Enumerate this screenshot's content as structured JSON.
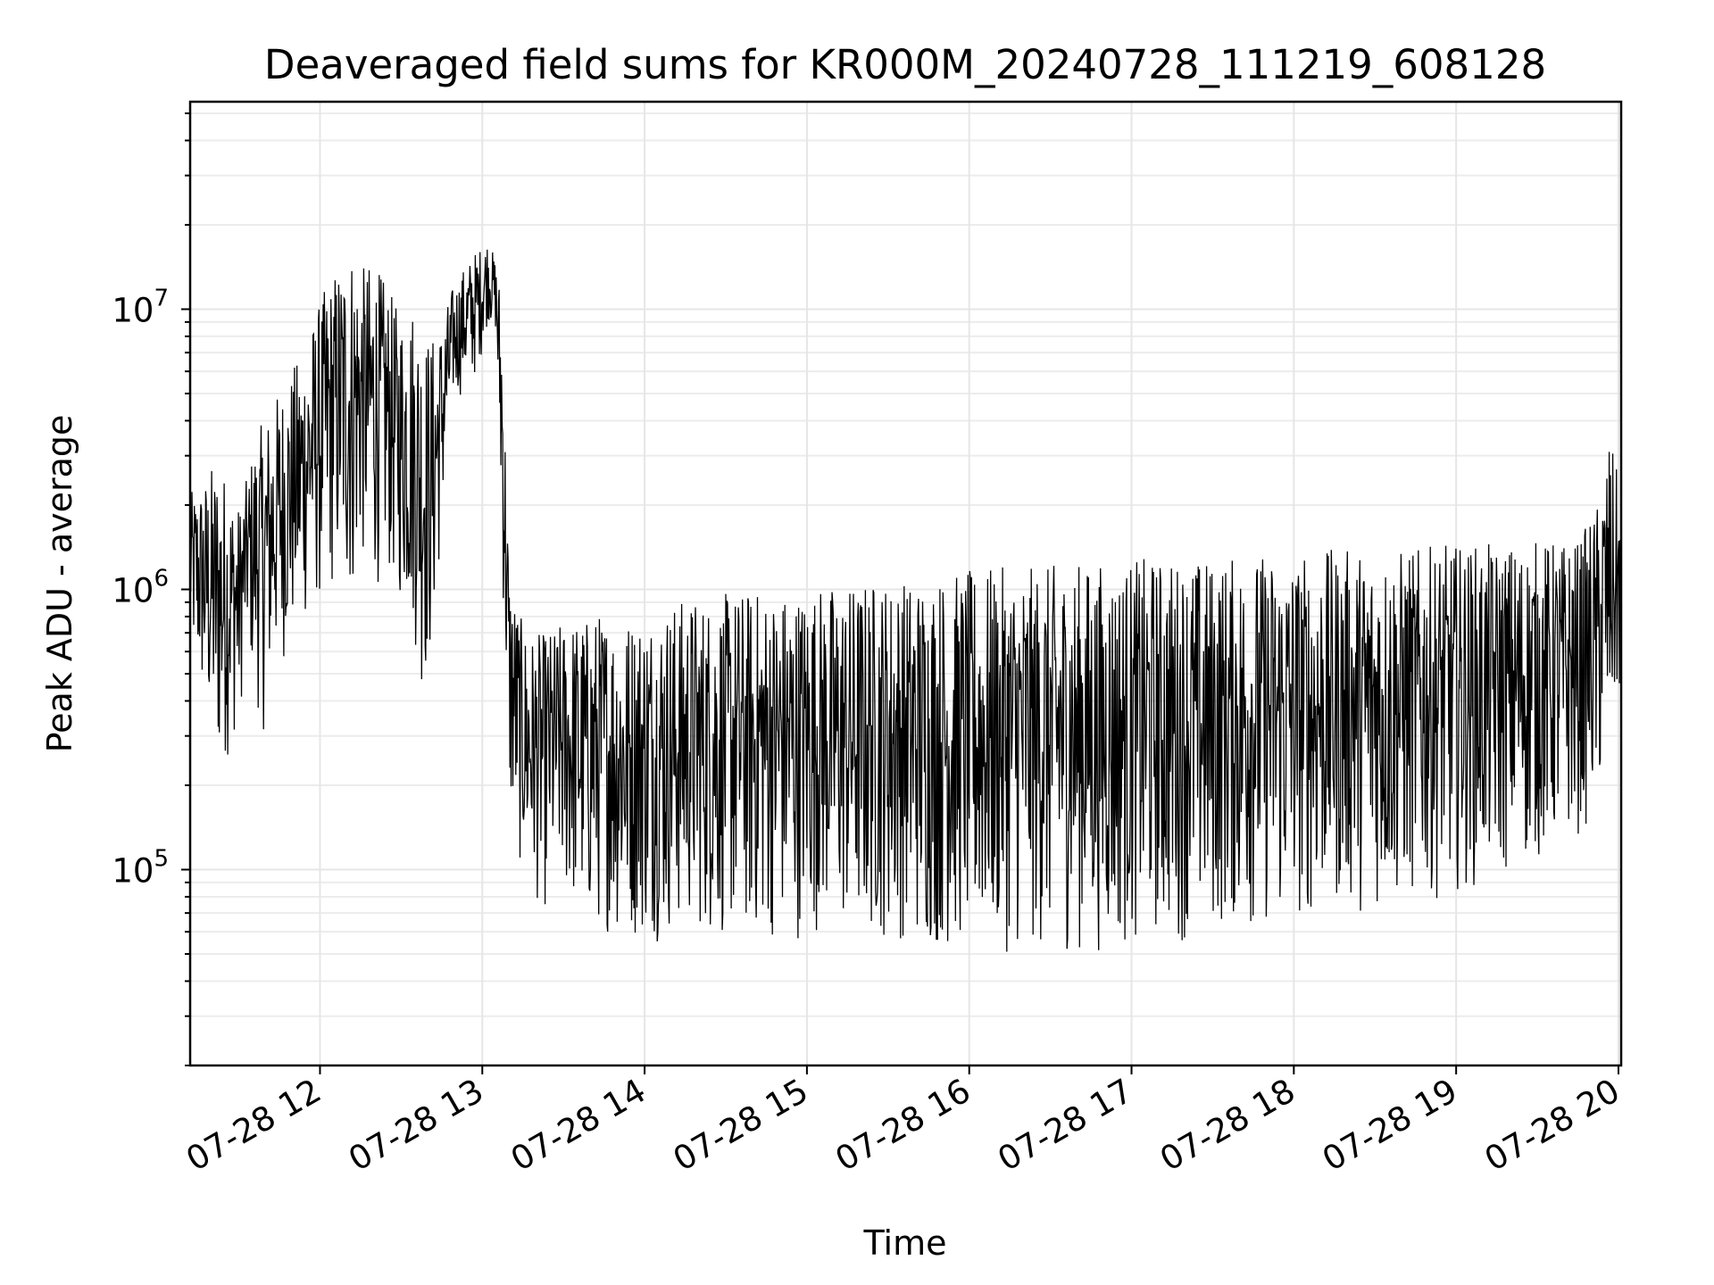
{
  "chart_data": {
    "type": "line",
    "title": "Deaveraged field sums for KR000M_20240728_111219_608128",
    "xlabel": "Time",
    "ylabel": "Peak ADU - average",
    "xscale": "time",
    "yscale": "log",
    "xlim": [
      "2024-07-28 11:12",
      "2024-07-28 20:01"
    ],
    "ylim": [
      20000,
      55000000
    ],
    "grid": true,
    "legend": "none",
    "line_color": "#000000",
    "x_tick_labels": [
      "07-28 12",
      "07-28 13",
      "07-28 14",
      "07-28 15",
      "07-28 16",
      "07-28 17",
      "07-28 18",
      "07-28 19",
      "07-28 20"
    ],
    "x_ticks": [
      "2024-07-28 12:00",
      "2024-07-28 13:00",
      "2024-07-28 14:00",
      "2024-07-28 15:00",
      "2024-07-28 16:00",
      "2024-07-28 17:00",
      "2024-07-28 18:00",
      "2024-07-28 19:00",
      "2024-07-28 20:00"
    ],
    "y_tick_labels": [
      {
        "value": 100000,
        "base": "10",
        "exp": "5"
      },
      {
        "value": 1000000,
        "base": "10",
        "exp": "6"
      },
      {
        "value": 10000000,
        "base": "10",
        "exp": "7"
      }
    ],
    "series": [
      {
        "x": [
          "2024-07-28 11:12",
          "2024-07-28 11:17",
          "2024-07-28 11:22",
          "2024-07-28 11:26",
          "2024-07-28 11:30",
          "2024-07-28 11:33",
          "2024-07-28 11:36",
          "2024-07-28 11:39",
          "2024-07-28 11:44",
          "2024-07-28 11:49",
          "2024-07-28 11:53",
          "2024-07-28 11:57",
          "2024-07-28 12:02",
          "2024-07-28 12:07",
          "2024-07-28 12:11",
          "2024-07-28 12:15",
          "2024-07-28 12:20",
          "2024-07-28 12:25",
          "2024-07-28 12:29",
          "2024-07-28 12:34",
          "2024-07-28 12:38",
          "2024-07-28 12:41",
          "2024-07-28 12:45",
          "2024-07-28 12:49",
          "2024-07-28 12:53",
          "2024-07-28 12:57",
          "2024-07-28 13:00",
          "2024-07-28 13:02",
          "2024-07-28 13:05",
          "2024-07-28 13:07",
          "2024-07-28 13:10",
          "2024-07-28 13:14",
          "2024-07-28 13:18",
          "2024-07-28 13:23",
          "2024-07-28 13:28",
          "2024-07-28 13:33",
          "2024-07-28 13:39",
          "2024-07-28 13:45",
          "2024-07-28 13:52",
          "2024-07-28 14:00",
          "2024-07-28 14:08",
          "2024-07-28 14:17",
          "2024-07-28 14:26",
          "2024-07-28 14:35",
          "2024-07-28 14:45",
          "2024-07-28 14:55",
          "2024-07-28 15:05",
          "2024-07-28 15:15",
          "2024-07-28 15:25",
          "2024-07-28 15:35",
          "2024-07-28 15:45",
          "2024-07-28 15:55",
          "2024-07-28 16:05",
          "2024-07-28 16:15",
          "2024-07-28 16:25",
          "2024-07-28 16:35",
          "2024-07-28 16:45",
          "2024-07-28 16:55",
          "2024-07-28 17:05",
          "2024-07-28 17:15",
          "2024-07-28 17:25",
          "2024-07-28 17:35",
          "2024-07-28 17:45",
          "2024-07-28 17:55",
          "2024-07-28 18:05",
          "2024-07-28 18:15",
          "2024-07-28 18:25",
          "2024-07-28 18:35",
          "2024-07-28 18:45",
          "2024-07-28 18:55",
          "2024-07-28 19:05",
          "2024-07-28 19:15",
          "2024-07-28 19:25",
          "2024-07-28 19:35",
          "2024-07-28 19:45",
          "2024-07-28 19:52",
          "2024-07-28 19:57",
          "2024-07-28 20:01"
        ],
        "low": [
          600000,
          350000,
          200000,
          250000,
          320000,
          600000,
          400000,
          300000,
          500000,
          600000,
          700000,
          800000,
          900000,
          1000000,
          800000,
          1200000,
          1000000,
          1100000,
          900000,
          700000,
          400000,
          500000,
          1500000,
          4500000,
          5000000,
          5500000,
          7000000,
          9000000,
          8000000,
          1500000,
          150000,
          100000,
          80000,
          70000,
          80000,
          70000,
          60000,
          60000,
          55000,
          55000,
          55000,
          60000,
          55000,
          55000,
          55000,
          55000,
          60000,
          55000,
          55000,
          55000,
          50000,
          50000,
          50000,
          50000,
          50000,
          50000,
          50000,
          50000,
          55000,
          55000,
          55000,
          60000,
          60000,
          60000,
          65000,
          70000,
          70000,
          70000,
          75000,
          80000,
          85000,
          90000,
          100000,
          110000,
          130000,
          150000,
          250000,
          400000
        ],
        "high": [
          2200000,
          2500000,
          3000000,
          2500000,
          2000000,
          2500000,
          3500000,
          4000000,
          5000000,
          6000000,
          7000000,
          9000000,
          12000000,
          15000000,
          18000000,
          14000000,
          15000000,
          12000000,
          10000000,
          11000000,
          9000000,
          8000000,
          9000000,
          12000000,
          14000000,
          16000000,
          17000000,
          18000000,
          15000000,
          12000000,
          1200000,
          800000,
          700000,
          700000,
          750000,
          800000,
          800000,
          850000,
          800000,
          850000,
          900000,
          950000,
          950000,
          1000000,
          1000000,
          1000000,
          1050000,
          1050000,
          1100000,
          1100000,
          1150000,
          1150000,
          1200000,
          1200000,
          1200000,
          1250000,
          1250000,
          1250000,
          1300000,
          1300000,
          1300000,
          1300000,
          1350000,
          1350000,
          1350000,
          1400000,
          1400000,
          1400000,
          1400000,
          1450000,
          1450000,
          1450000,
          1500000,
          1500000,
          1500000,
          2000000,
          3500000,
          2200000
        ]
      }
    ]
  }
}
